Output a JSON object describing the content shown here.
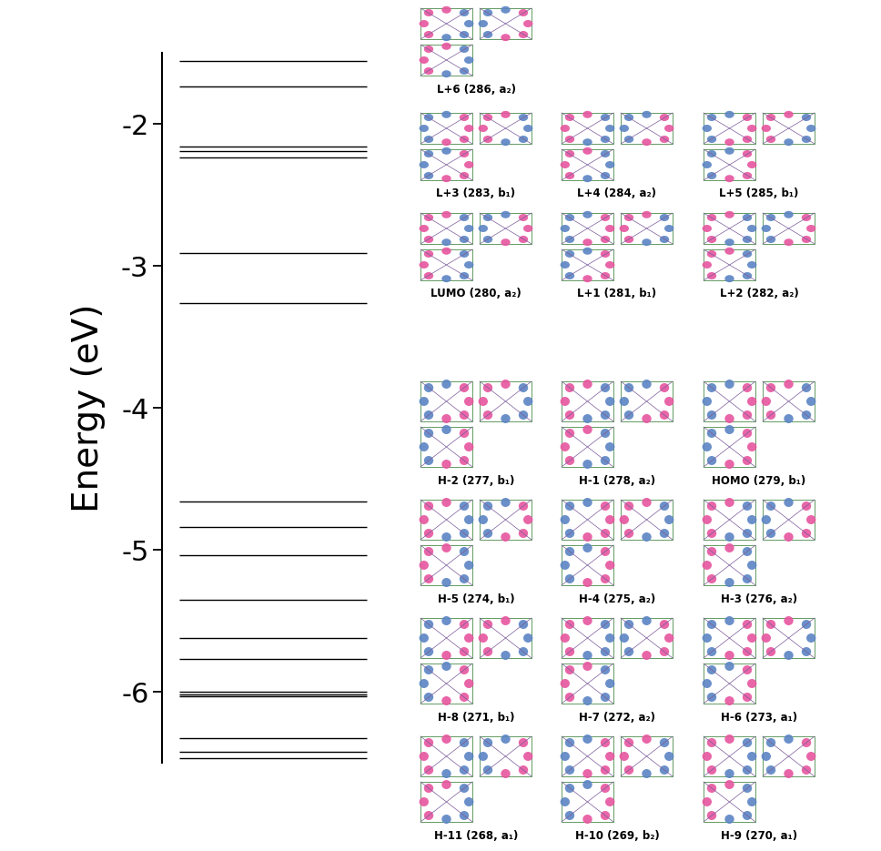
{
  "chart_data": {
    "type": "energy_levels",
    "ylabel": "Energy (eV)",
    "ylim": [
      -6.5,
      -1.5
    ],
    "yticks": [
      -6,
      -5,
      -4,
      -3,
      -2
    ],
    "values": [
      -1.56,
      -1.74,
      -2.16,
      -2.19,
      -2.24,
      -2.91,
      -3.26,
      -4.66,
      -4.84,
      -5.04,
      -5.35,
      -5.62,
      -5.77,
      -6.0,
      -6.02,
      -6.03,
      -6.33,
      -6.42,
      -6.47
    ],
    "color": "#000000",
    "tick_labels": "y"
  },
  "orbital_rows": [
    [
      "L+6 (286, a₂)"
    ],
    [
      "L+3 (283, b₁)",
      "L+4 (284, a₂)",
      "L+5 (285, b₁)"
    ],
    [
      "LUMO (280, a₂)",
      "L+1 (281, b₁)",
      "L+2 (282, a₂)"
    ],
    [
      "H-2 (277, b₁)",
      "H-1 (278, a₂)",
      "HOMO (279, b₁)"
    ],
    [
      "H-5 (274, b₁)",
      "H-4 (275, a₂)",
      "H-3 (276, a₂)"
    ],
    [
      "H-8 (271, b₁)",
      "H-7 (272, a₂)",
      "H-6 (273, a₁)"
    ],
    [
      "H-11 (268, a₁)",
      "H-10 (269, b₂)",
      "H-9 (270, a₁)"
    ]
  ]
}
